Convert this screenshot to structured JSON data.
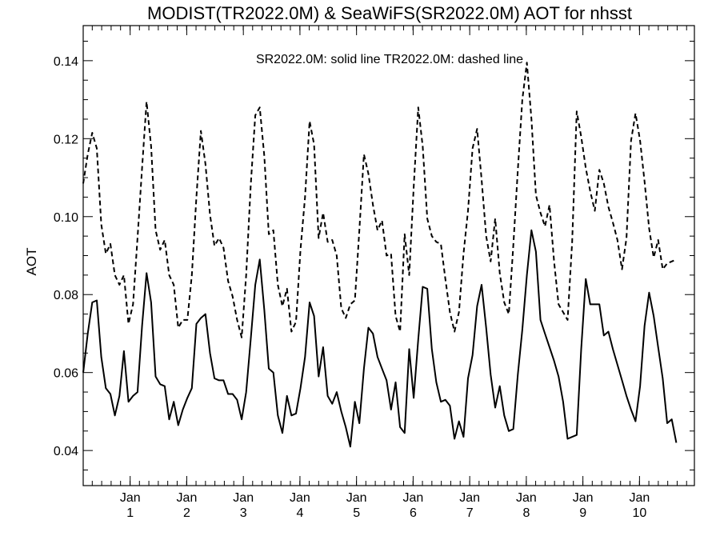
{
  "chart_data": {
    "type": "line",
    "title": "MODIST(TR2022.0M) & SeaWiFS(SR2022.0M)  AOT for nhsst",
    "annotation": "SR2022.0M: solid line   TR2022.0M: dashed line",
    "ylabel": "AOT",
    "xlabel": "",
    "xlim": [
      0,
      10.8
    ],
    "ylim": [
      0.031,
      0.149
    ],
    "yticks": [
      {
        "value": 0.04,
        "label": "0.04"
      },
      {
        "value": 0.06,
        "label": "0.06"
      },
      {
        "value": 0.08,
        "label": "0.08"
      },
      {
        "value": 0.1,
        "label": "0.10"
      },
      {
        "value": 0.12,
        "label": "0.12"
      },
      {
        "value": 0.14,
        "label": "0.14"
      }
    ],
    "xticks": [
      {
        "value": 0.83,
        "month": "Jan",
        "year": "1"
      },
      {
        "value": 1.83,
        "month": "Jan",
        "year": "2"
      },
      {
        "value": 2.83,
        "month": "Jan",
        "year": "3"
      },
      {
        "value": 3.83,
        "month": "Jan",
        "year": "4"
      },
      {
        "value": 4.83,
        "month": "Jan",
        "year": "5"
      },
      {
        "value": 5.83,
        "month": "Jan",
        "year": "6"
      },
      {
        "value": 6.83,
        "month": "Jan",
        "year": "7"
      },
      {
        "value": 7.83,
        "month": "Jan",
        "year": "8"
      },
      {
        "value": 8.83,
        "month": "Jan",
        "year": "9"
      },
      {
        "value": 9.83,
        "month": "Jan",
        "year": "10"
      }
    ],
    "grid": false,
    "series": [
      {
        "name": "SR2022.0M",
        "style": "solid",
        "points": [
          [
            0.0,
            0.06
          ],
          [
            0.08,
            0.07
          ],
          [
            0.16,
            0.078
          ],
          [
            0.24,
            0.0785
          ],
          [
            0.32,
            0.064
          ],
          [
            0.4,
            0.056
          ],
          [
            0.48,
            0.0545
          ],
          [
            0.56,
            0.049
          ],
          [
            0.64,
            0.054
          ],
          [
            0.72,
            0.0655
          ],
          [
            0.8,
            0.0525
          ],
          [
            0.88,
            0.054
          ],
          [
            0.96,
            0.055
          ],
          [
            1.04,
            0.072
          ],
          [
            1.12,
            0.0855
          ],
          [
            1.2,
            0.078
          ],
          [
            1.28,
            0.059
          ],
          [
            1.36,
            0.057
          ],
          [
            1.44,
            0.0565
          ],
          [
            1.52,
            0.048
          ],
          [
            1.6,
            0.0525
          ],
          [
            1.68,
            0.0465
          ],
          [
            1.76,
            0.0505
          ],
          [
            1.84,
            0.0535
          ],
          [
            1.92,
            0.056
          ],
          [
            2.0,
            0.0725
          ],
          [
            2.08,
            0.074
          ],
          [
            2.16,
            0.075
          ],
          [
            2.24,
            0.065
          ],
          [
            2.32,
            0.0585
          ],
          [
            2.4,
            0.058
          ],
          [
            2.48,
            0.058
          ],
          [
            2.56,
            0.0545
          ],
          [
            2.64,
            0.0545
          ],
          [
            2.72,
            0.053
          ],
          [
            2.8,
            0.048
          ],
          [
            2.88,
            0.055
          ],
          [
            2.96,
            0.0685
          ],
          [
            3.04,
            0.0825
          ],
          [
            3.12,
            0.089
          ],
          [
            3.2,
            0.076
          ],
          [
            3.28,
            0.061
          ],
          [
            3.36,
            0.06
          ],
          [
            3.44,
            0.049
          ],
          [
            3.52,
            0.0445
          ],
          [
            3.6,
            0.054
          ],
          [
            3.68,
            0.049
          ],
          [
            3.76,
            0.0495
          ],
          [
            3.84,
            0.056
          ],
          [
            3.92,
            0.064
          ],
          [
            4.0,
            0.078
          ],
          [
            4.08,
            0.0745
          ],
          [
            4.16,
            0.059
          ],
          [
            4.24,
            0.0665
          ],
          [
            4.32,
            0.054
          ],
          [
            4.4,
            0.052
          ],
          [
            4.48,
            0.055
          ],
          [
            4.56,
            0.05
          ],
          [
            4.64,
            0.046
          ],
          [
            4.72,
            0.041
          ],
          [
            4.8,
            0.0525
          ],
          [
            4.88,
            0.047
          ],
          [
            4.96,
            0.061
          ],
          [
            5.04,
            0.0715
          ],
          [
            5.12,
            0.07
          ],
          [
            5.2,
            0.064
          ],
          [
            5.28,
            0.061
          ],
          [
            5.36,
            0.058
          ],
          [
            5.44,
            0.0505
          ],
          [
            5.52,
            0.0575
          ],
          [
            5.6,
            0.046
          ],
          [
            5.68,
            0.0445
          ],
          [
            5.76,
            0.066
          ],
          [
            5.84,
            0.0535
          ],
          [
            5.92,
            0.0685
          ],
          [
            6.0,
            0.082
          ],
          [
            6.08,
            0.0815
          ],
          [
            6.16,
            0.066
          ],
          [
            6.24,
            0.0575
          ],
          [
            6.32,
            0.0525
          ],
          [
            6.4,
            0.053
          ],
          [
            6.48,
            0.0515
          ],
          [
            6.56,
            0.043
          ],
          [
            6.64,
            0.0475
          ],
          [
            6.72,
            0.0435
          ],
          [
            6.8,
            0.0585
          ],
          [
            6.88,
            0.0645
          ],
          [
            6.96,
            0.077
          ],
          [
            7.04,
            0.0825
          ],
          [
            7.12,
            0.0715
          ],
          [
            7.2,
            0.0595
          ],
          [
            7.28,
            0.051
          ],
          [
            7.36,
            0.0565
          ],
          [
            7.44,
            0.049
          ],
          [
            7.52,
            0.045
          ],
          [
            7.6,
            0.0455
          ],
          [
            7.68,
            0.0595
          ],
          [
            7.76,
            0.071
          ],
          [
            7.84,
            0.085
          ],
          [
            7.92,
            0.0965
          ],
          [
            8.0,
            0.091
          ],
          [
            8.08,
            0.0735
          ],
          [
            8.16,
            0.07
          ],
          [
            8.24,
            0.0665
          ],
          [
            8.32,
            0.063
          ],
          [
            8.4,
            0.059
          ],
          [
            8.48,
            0.0525
          ],
          [
            8.56,
            0.043
          ],
          [
            8.64,
            0.0435
          ],
          [
            8.72,
            0.044
          ],
          [
            8.8,
            0.066
          ],
          [
            8.88,
            0.084
          ],
          [
            8.96,
            0.0775
          ],
          [
            9.04,
            0.0775
          ],
          [
            9.12,
            0.0775
          ],
          [
            9.2,
            0.0695
          ],
          [
            9.28,
            0.0705
          ],
          [
            9.36,
            0.066
          ],
          [
            9.44,
            0.062
          ],
          [
            9.52,
            0.058
          ],
          [
            9.6,
            0.054
          ],
          [
            9.68,
            0.0505
          ],
          [
            9.76,
            0.0475
          ],
          [
            9.84,
            0.0565
          ],
          [
            9.92,
            0.072
          ],
          [
            10.0,
            0.0805
          ],
          [
            10.08,
            0.0745
          ],
          [
            10.16,
            0.0665
          ],
          [
            10.24,
            0.0585
          ],
          [
            10.32,
            0.047
          ],
          [
            10.4,
            0.048
          ],
          [
            10.48,
            0.042
          ]
        ]
      },
      {
        "name": "TR2022.0M",
        "style": "dashed",
        "points": [
          [
            0.0,
            0.1085
          ],
          [
            0.08,
            0.116
          ],
          [
            0.16,
            0.1215
          ],
          [
            0.24,
            0.1175
          ],
          [
            0.32,
            0.098
          ],
          [
            0.4,
            0.0905
          ],
          [
            0.48,
            0.093
          ],
          [
            0.56,
            0.085
          ],
          [
            0.64,
            0.0825
          ],
          [
            0.72,
            0.085
          ],
          [
            0.8,
            0.0725
          ],
          [
            0.88,
            0.0775
          ],
          [
            0.96,
            0.0945
          ],
          [
            1.04,
            0.1125
          ],
          [
            1.12,
            0.1295
          ],
          [
            1.2,
            0.118
          ],
          [
            1.28,
            0.0965
          ],
          [
            1.36,
            0.0915
          ],
          [
            1.44,
            0.094
          ],
          [
            1.52,
            0.085
          ],
          [
            1.6,
            0.0825
          ],
          [
            1.68,
            0.0715
          ],
          [
            1.76,
            0.0735
          ],
          [
            1.84,
            0.0735
          ],
          [
            1.92,
            0.085
          ],
          [
            2.0,
            0.105
          ],
          [
            2.08,
            0.122
          ],
          [
            2.16,
            0.1135
          ],
          [
            2.24,
            0.1005
          ],
          [
            2.32,
            0.0925
          ],
          [
            2.4,
            0.0945
          ],
          [
            2.48,
            0.092
          ],
          [
            2.56,
            0.0835
          ],
          [
            2.64,
            0.0795
          ],
          [
            2.72,
            0.0735
          ],
          [
            2.8,
            0.069
          ],
          [
            2.88,
            0.085
          ],
          [
            2.96,
            0.108
          ],
          [
            3.04,
            0.126
          ],
          [
            3.12,
            0.128
          ],
          [
            3.2,
            0.1155
          ],
          [
            3.28,
            0.0955
          ],
          [
            3.36,
            0.0965
          ],
          [
            3.44,
            0.0825
          ],
          [
            3.52,
            0.077
          ],
          [
            3.6,
            0.0815
          ],
          [
            3.68,
            0.0705
          ],
          [
            3.76,
            0.073
          ],
          [
            3.84,
            0.0915
          ],
          [
            3.92,
            0.105
          ],
          [
            4.0,
            0.1245
          ],
          [
            4.08,
            0.1185
          ],
          [
            4.16,
            0.0945
          ],
          [
            4.24,
            0.101
          ],
          [
            4.32,
            0.0935
          ],
          [
            4.4,
            0.094
          ],
          [
            4.48,
            0.09
          ],
          [
            4.56,
            0.0765
          ],
          [
            4.64,
            0.074
          ],
          [
            4.72,
            0.0775
          ],
          [
            4.8,
            0.0785
          ],
          [
            4.88,
            0.0965
          ],
          [
            4.96,
            0.116
          ],
          [
            5.04,
            0.111
          ],
          [
            5.12,
            0.103
          ],
          [
            5.2,
            0.0965
          ],
          [
            5.28,
            0.099
          ],
          [
            5.36,
            0.09
          ],
          [
            5.44,
            0.0905
          ],
          [
            5.52,
            0.0745
          ],
          [
            5.6,
            0.0705
          ],
          [
            5.68,
            0.0955
          ],
          [
            5.76,
            0.085
          ],
          [
            5.84,
            0.1075
          ],
          [
            5.92,
            0.128
          ],
          [
            6.0,
            0.118
          ],
          [
            6.08,
            0.0995
          ],
          [
            6.16,
            0.095
          ],
          [
            6.24,
            0.0935
          ],
          [
            6.32,
            0.093
          ],
          [
            6.4,
            0.084
          ],
          [
            6.48,
            0.0755
          ],
          [
            6.56,
            0.0705
          ],
          [
            6.64,
            0.0755
          ],
          [
            6.72,
            0.0905
          ],
          [
            6.8,
            0.1015
          ],
          [
            6.88,
            0.1175
          ],
          [
            6.96,
            0.1225
          ],
          [
            7.04,
            0.1095
          ],
          [
            7.12,
            0.095
          ],
          [
            7.2,
            0.0885
          ],
          [
            7.28,
            0.0995
          ],
          [
            7.36,
            0.0855
          ],
          [
            7.44,
            0.078
          ],
          [
            7.52,
            0.075
          ],
          [
            7.6,
            0.0925
          ],
          [
            7.68,
            0.112
          ],
          [
            7.76,
            0.13
          ],
          [
            7.84,
            0.1395
          ],
          [
            7.92,
            0.125
          ],
          [
            8.0,
            0.1055
          ],
          [
            8.08,
            0.101
          ],
          [
            8.16,
            0.0975
          ],
          [
            8.24,
            0.103
          ],
          [
            8.32,
            0.0885
          ],
          [
            8.4,
            0.0775
          ],
          [
            8.48,
            0.0755
          ],
          [
            8.56,
            0.0735
          ],
          [
            8.64,
            0.0935
          ],
          [
            8.72,
            0.127
          ],
          [
            8.8,
            0.1205
          ],
          [
            8.88,
            0.1125
          ],
          [
            8.96,
            0.1065
          ],
          [
            9.04,
            0.1015
          ],
          [
            9.12,
            0.112
          ],
          [
            9.2,
            0.1085
          ],
          [
            9.28,
            0.1025
          ],
          [
            9.36,
            0.0985
          ],
          [
            9.44,
            0.094
          ],
          [
            9.52,
            0.0865
          ],
          [
            9.6,
            0.0945
          ],
          [
            9.68,
            0.1195
          ],
          [
            9.76,
            0.1265
          ],
          [
            9.84,
            0.1195
          ],
          [
            9.92,
            0.109
          ],
          [
            10.0,
            0.097
          ],
          [
            10.08,
            0.0895
          ],
          [
            10.16,
            0.094
          ],
          [
            10.24,
            0.0865
          ],
          [
            10.32,
            0.088
          ],
          [
            10.4,
            0.0885
          ],
          [
            10.48,
            0.089
          ]
        ]
      }
    ]
  }
}
